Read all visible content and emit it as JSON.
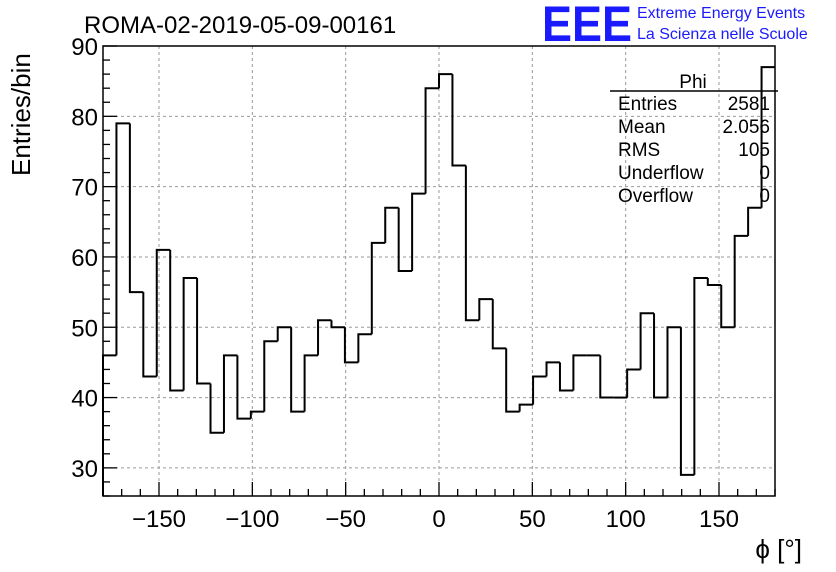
{
  "chart_data": {
    "type": "histogram",
    "title": "ROMA-02-2019-05-09-00161",
    "xlabel": "ϕ [°]",
    "ylabel": "Entries/bin",
    "xlim": [
      -180,
      180
    ],
    "ylim": [
      26,
      90
    ],
    "grid": true,
    "bin_width": 7.2,
    "x_ticks": [
      -150,
      -100,
      -50,
      0,
      50,
      100,
      150
    ],
    "x_tick_labels": [
      "−150",
      "−100",
      "−50",
      "0",
      "50",
      "100",
      "150"
    ],
    "y_ticks": [
      30,
      40,
      50,
      60,
      70,
      80,
      90
    ],
    "y_tick_labels": [
      "30",
      "40",
      "50",
      "60",
      "70",
      "80",
      "90"
    ],
    "values": [
      46,
      79,
      55,
      43,
      61,
      41,
      57,
      42,
      35,
      46,
      37,
      38,
      48,
      50,
      38,
      46,
      51,
      50,
      45,
      49,
      62,
      67,
      58,
      69,
      84,
      86,
      73,
      51,
      54,
      47,
      38,
      39,
      43,
      45,
      41,
      46,
      46,
      40,
      40,
      44,
      52,
      40,
      50,
      29,
      57,
      56,
      50,
      63,
      67,
      87
    ]
  },
  "stats_box": {
    "title": "Phi",
    "rows": [
      {
        "label": "Entries",
        "value": "2581"
      },
      {
        "label": "Mean",
        "value": "2.056"
      },
      {
        "label": "RMS",
        "value": "105"
      },
      {
        "label": "Underflow",
        "value": "0"
      },
      {
        "label": "Overflow",
        "value": "0"
      }
    ]
  },
  "logo": {
    "big": "EEE",
    "line1": "Extreme Energy Events",
    "line2": "La Scienza nelle Scuole",
    "color": "#1a1aff"
  }
}
